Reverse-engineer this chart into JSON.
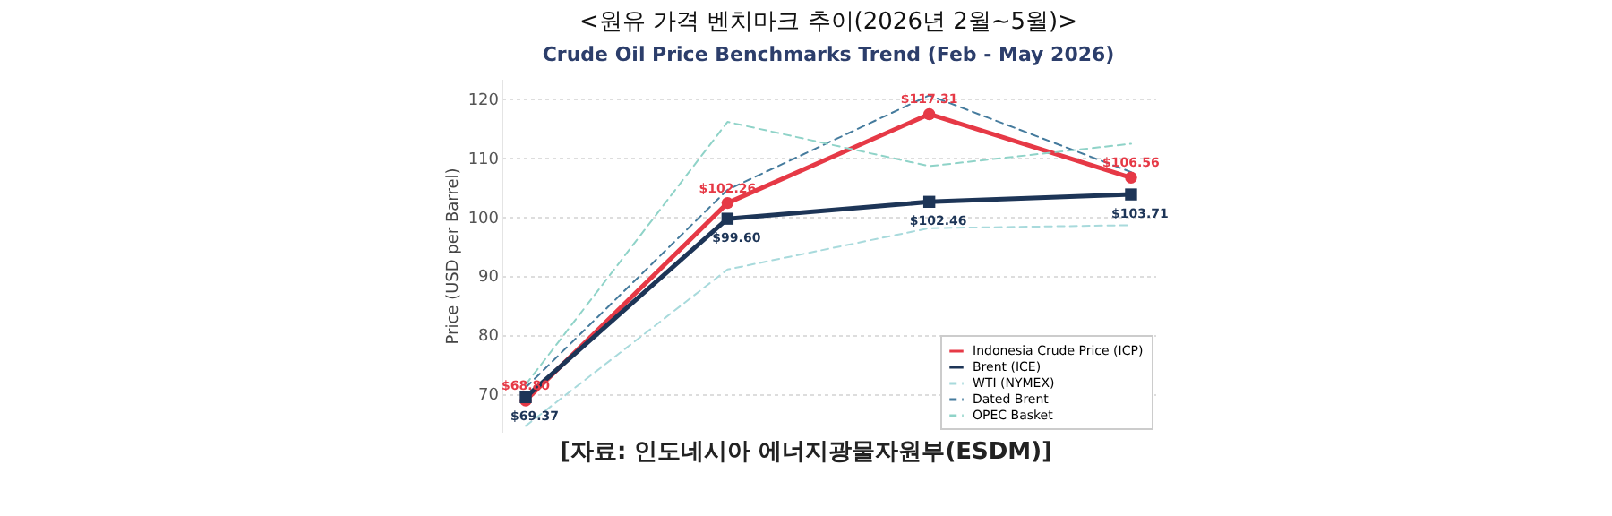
{
  "chart_data": {
    "type": "line",
    "title": "<원유 가격 벤치마크 추이(2026년 2월~5월)>",
    "subtitle": "Crude Oil Price Benchmarks Trend (Feb - May 2026)",
    "ylabel": "Price (USD per Barrel)",
    "categories": [
      null,
      null,
      null,
      null
    ],
    "series": [
      {
        "name": "Indonesia Crude Price (ICP)",
        "color": "#e63946",
        "marker": "circle",
        "line_style": "solid",
        "values": [
          68.8,
          102.26,
          117.31,
          106.56
        ],
        "value_labels": [
          "$68.80",
          "$102.26",
          "$117.31",
          "$106.56"
        ]
      },
      {
        "name": "Brent (ICE)",
        "color": "#1d3557",
        "marker": "square",
        "line_style": "solid",
        "values": [
          69.37,
          99.6,
          102.46,
          103.71
        ],
        "value_labels": [
          "$69.37",
          "$99.60",
          "$102.46",
          "$103.71"
        ]
      },
      {
        "name": "WTI (NYMEX)",
        "color": "#a8dadc",
        "marker": "none",
        "line_style": "dashed",
        "values": [
          64.5,
          91,
          98,
          98.5
        ]
      },
      {
        "name": "Dated Brent",
        "color": "#457b9d",
        "marker": "none",
        "line_style": "dashed",
        "values": [
          71,
          104.5,
          120.5,
          107.5
        ]
      },
      {
        "name": "OPEC Basket",
        "color": "#8fd3c8",
        "marker": "none",
        "line_style": "dashed",
        "values": [
          71.5,
          116,
          108.5,
          112.3
        ]
      }
    ],
    "ylim": [
      63.5,
      123.3
    ],
    "yticks": [
      70,
      80,
      90,
      100,
      110,
      120
    ],
    "grid": "y",
    "legend": "bottom right",
    "tick_labels": "y",
    "annotations": [
      "[자료: 인도네시아 에너지광물자원부(ESDM)]"
    ]
  }
}
